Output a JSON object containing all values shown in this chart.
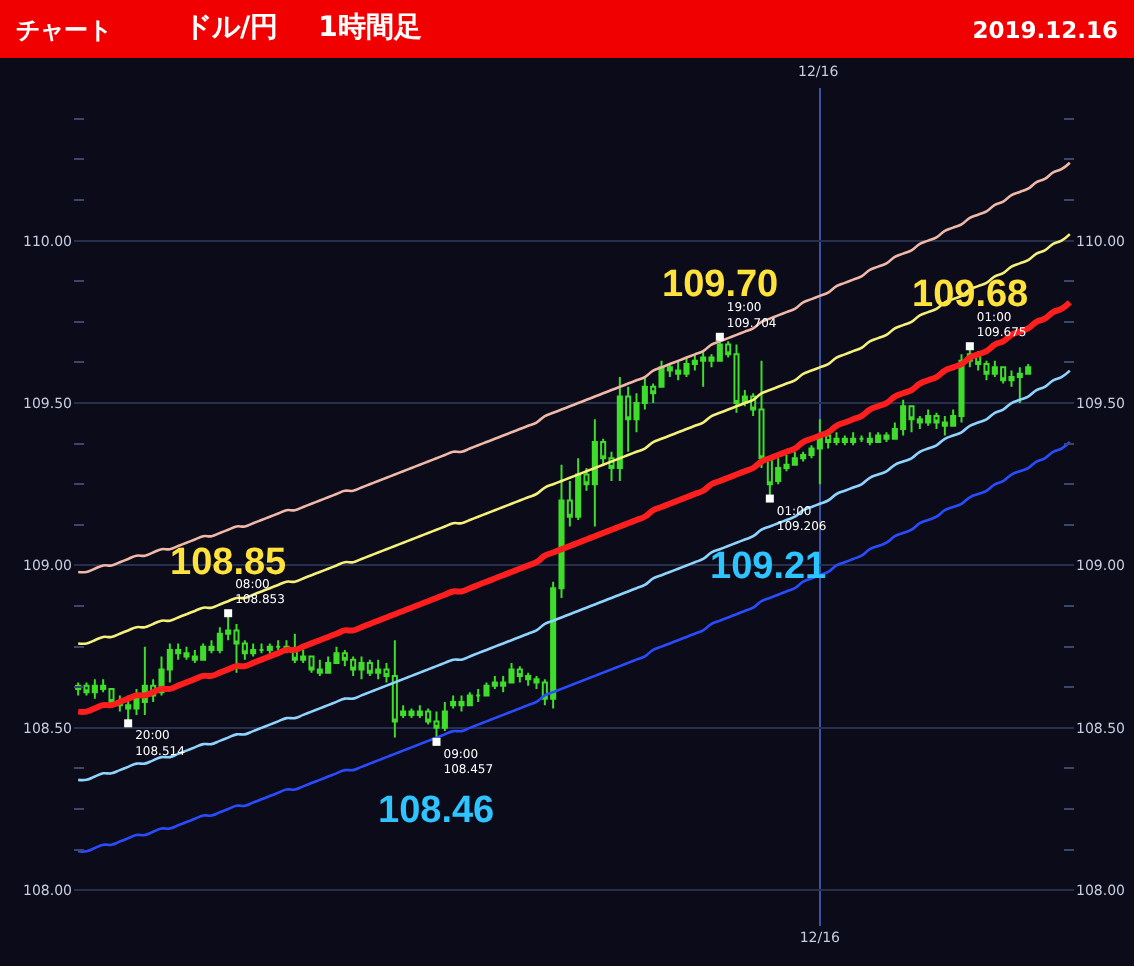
{
  "chart_data": {
    "type": "candlestick",
    "title": "チャート",
    "subtitle": "ドル/円　1時間足",
    "color": "#3fdc2c",
    "grid": true,
    "categories": [
      null,
      null,
      null,
      null,
      null,
      null,
      null,
      null,
      null,
      null,
      null,
      null,
      null,
      null,
      null,
      null,
      null,
      null,
      null,
      null,
      null,
      null,
      null,
      null,
      null,
      null,
      null,
      null,
      null,
      null,
      null,
      null,
      null,
      null,
      null,
      null,
      null,
      null,
      null,
      null,
      null,
      null,
      null,
      null,
      null,
      null,
      null,
      null,
      null,
      null,
      null,
      null,
      null,
      null,
      null,
      null,
      null,
      null,
      null,
      null,
      null,
      null,
      null,
      null,
      null,
      null,
      null,
      null,
      null,
      null,
      null,
      null,
      null,
      null,
      null,
      null,
      null,
      null,
      null,
      null,
      null,
      null,
      null,
      null,
      null,
      null,
      null,
      null,
      null,
      "12/16",
      null,
      null,
      null,
      null,
      null,
      null,
      null,
      null,
      null,
      null,
      null,
      null,
      null,
      null,
      null,
      null,
      null,
      null,
      null,
      null,
      null,
      null,
      null,
      null,
      null,
      null,
      null,
      null,
      null,
      null
    ],
    "ohlc": [
      [
        108.62,
        108.64,
        108.6,
        108.63
      ],
      [
        108.63,
        108.64,
        108.6,
        108.61
      ],
      [
        108.61,
        108.65,
        108.59,
        108.63
      ],
      [
        108.63,
        108.65,
        108.61,
        108.62
      ],
      [
        108.62,
        108.62,
        108.57,
        108.58
      ],
      [
        108.58,
        108.6,
        108.55,
        108.57
      ],
      [
        108.57,
        108.6,
        108.514,
        108.56
      ],
      [
        108.56,
        108.62,
        108.54,
        108.59
      ],
      [
        108.58,
        108.75,
        108.54,
        108.63
      ],
      [
        108.63,
        108.65,
        108.58,
        108.6
      ],
      [
        108.61,
        108.72,
        108.6,
        108.68
      ],
      [
        108.68,
        108.76,
        108.64,
        108.74
      ],
      [
        108.74,
        108.76,
        108.71,
        108.73
      ],
      [
        108.73,
        108.75,
        108.71,
        108.72
      ],
      [
        108.72,
        108.74,
        108.7,
        108.71
      ],
      [
        108.71,
        108.76,
        108.71,
        108.75
      ],
      [
        108.75,
        108.77,
        108.73,
        108.74
      ],
      [
        108.74,
        108.81,
        108.73,
        108.79
      ],
      [
        108.79,
        108.853,
        108.77,
        108.8
      ],
      [
        108.8,
        108.82,
        108.67,
        108.76
      ],
      [
        108.76,
        108.77,
        108.71,
        108.73
      ],
      [
        108.73,
        108.76,
        108.72,
        108.74
      ],
      [
        108.74,
        108.76,
        108.73,
        108.74
      ],
      [
        108.74,
        108.76,
        108.73,
        108.75
      ],
      [
        108.75,
        108.77,
        108.74,
        108.75
      ],
      [
        108.75,
        108.77,
        108.73,
        108.74
      ],
      [
        108.74,
        108.79,
        108.7,
        108.71
      ],
      [
        108.71,
        108.74,
        108.7,
        108.72
      ],
      [
        108.72,
        108.72,
        108.67,
        108.68
      ],
      [
        108.68,
        108.71,
        108.66,
        108.67
      ],
      [
        108.67,
        108.72,
        108.67,
        108.7
      ],
      [
        108.7,
        108.75,
        108.7,
        108.73
      ],
      [
        108.73,
        108.74,
        108.69,
        108.71
      ],
      [
        108.71,
        108.72,
        108.66,
        108.68
      ],
      [
        108.68,
        108.72,
        108.65,
        108.7
      ],
      [
        108.7,
        108.71,
        108.66,
        108.67
      ],
      [
        108.67,
        108.71,
        108.65,
        108.68
      ],
      [
        108.68,
        108.7,
        108.64,
        108.66
      ],
      [
        108.66,
        108.77,
        108.47,
        108.52
      ],
      [
        108.54,
        108.57,
        108.53,
        108.55
      ],
      [
        108.55,
        108.56,
        108.53,
        108.54
      ],
      [
        108.54,
        108.57,
        108.53,
        108.55
      ],
      [
        108.55,
        108.56,
        108.51,
        108.52
      ],
      [
        108.52,
        108.55,
        108.457,
        108.5
      ],
      [
        108.5,
        108.58,
        108.49,
        108.55
      ],
      [
        108.57,
        108.6,
        108.56,
        108.58
      ],
      [
        108.58,
        108.6,
        108.55,
        108.57
      ],
      [
        108.57,
        108.61,
        108.57,
        108.6
      ],
      [
        108.6,
        108.62,
        108.58,
        108.6
      ],
      [
        108.6,
        108.64,
        108.6,
        108.63
      ],
      [
        108.63,
        108.66,
        108.62,
        108.64
      ],
      [
        108.64,
        108.66,
        108.61,
        108.63
      ],
      [
        108.64,
        108.7,
        108.64,
        108.68
      ],
      [
        108.68,
        108.69,
        108.64,
        108.66
      ],
      [
        108.66,
        108.67,
        108.63,
        108.65
      ],
      [
        108.65,
        108.66,
        108.62,
        108.64
      ],
      [
        108.64,
        108.65,
        108.57,
        108.59
      ],
      [
        108.59,
        108.95,
        108.56,
        108.93
      ],
      [
        108.93,
        109.31,
        108.9,
        109.2
      ],
      [
        109.2,
        109.26,
        109.12,
        109.15
      ],
      [
        109.15,
        109.33,
        109.14,
        109.28
      ],
      [
        109.28,
        109.3,
        109.23,
        109.25
      ],
      [
        109.25,
        109.45,
        109.12,
        109.38
      ],
      [
        109.38,
        109.39,
        109.31,
        109.33
      ],
      [
        109.33,
        109.35,
        109.26,
        109.3
      ],
      [
        109.3,
        109.58,
        109.26,
        109.52
      ],
      [
        109.52,
        109.55,
        109.35,
        109.45
      ],
      [
        109.45,
        109.53,
        109.41,
        109.5
      ],
      [
        109.5,
        109.58,
        109.48,
        109.55
      ],
      [
        109.55,
        109.56,
        109.5,
        109.53
      ],
      [
        109.55,
        109.63,
        109.55,
        109.61
      ],
      [
        109.61,
        109.62,
        109.58,
        109.6
      ],
      [
        109.6,
        109.63,
        109.57,
        109.59
      ],
      [
        109.59,
        109.64,
        109.58,
        109.62
      ],
      [
        109.62,
        109.65,
        109.6,
        109.63
      ],
      [
        109.63,
        109.66,
        109.55,
        109.64
      ],
      [
        109.64,
        109.65,
        109.61,
        109.63
      ],
      [
        109.63,
        109.704,
        109.63,
        109.68
      ],
      [
        109.68,
        109.69,
        109.64,
        109.65
      ],
      [
        109.65,
        109.68,
        109.47,
        109.5
      ],
      [
        109.5,
        109.54,
        109.49,
        109.52
      ],
      [
        109.52,
        109.53,
        109.46,
        109.48
      ],
      [
        109.48,
        109.63,
        109.3,
        109.33
      ],
      [
        109.33,
        109.33,
        109.206,
        109.25
      ],
      [
        109.26,
        109.33,
        109.25,
        109.3
      ],
      [
        109.3,
        109.34,
        109.29,
        109.31
      ],
      [
        109.31,
        109.35,
        109.31,
        109.33
      ],
      [
        109.33,
        109.35,
        109.32,
        109.34
      ],
      [
        109.34,
        109.37,
        109.33,
        109.36
      ],
      [
        109.36,
        109.45,
        109.25,
        109.4
      ],
      [
        109.4,
        109.42,
        109.36,
        109.38
      ],
      [
        109.38,
        109.41,
        109.37,
        109.39
      ],
      [
        109.39,
        109.4,
        109.37,
        109.38
      ],
      [
        109.38,
        109.41,
        109.37,
        109.39
      ],
      [
        109.39,
        109.4,
        109.38,
        109.39
      ],
      [
        109.39,
        109.41,
        109.37,
        109.38
      ],
      [
        109.38,
        109.41,
        109.38,
        109.4
      ],
      [
        109.4,
        109.41,
        109.38,
        109.39
      ],
      [
        109.39,
        109.44,
        109.39,
        109.42
      ],
      [
        109.42,
        109.51,
        109.4,
        109.49
      ],
      [
        109.49,
        109.49,
        109.41,
        109.45
      ],
      [
        109.45,
        109.46,
        109.42,
        109.44
      ],
      [
        109.44,
        109.48,
        109.43,
        109.46
      ],
      [
        109.46,
        109.47,
        109.42,
        109.44
      ],
      [
        109.44,
        109.46,
        109.4,
        109.43
      ],
      [
        109.43,
        109.48,
        109.43,
        109.46
      ],
      [
        109.46,
        109.65,
        109.44,
        109.63
      ],
      [
        109.63,
        109.675,
        109.61,
        109.65
      ],
      [
        109.65,
        109.66,
        109.6,
        109.62
      ],
      [
        109.62,
        109.63,
        109.57,
        109.59
      ],
      [
        109.59,
        109.63,
        109.58,
        109.61
      ],
      [
        109.61,
        109.61,
        109.56,
        109.57
      ],
      [
        109.57,
        109.6,
        109.55,
        109.58
      ],
      [
        109.58,
        109.61,
        109.5,
        109.59
      ],
      [
        109.59,
        109.62,
        109.59,
        109.61
      ],
      null,
      null,
      null,
      null,
      null
    ],
    "series": [
      {
        "type": "line",
        "color": "#f0b8a8",
        "values": [
          108.98,
          108.98,
          108.99,
          109.0,
          109.0,
          109.01,
          109.02,
          109.03,
          109.03,
          109.04,
          109.05,
          109.05,
          109.06,
          109.07,
          109.08,
          109.09,
          109.09,
          109.1,
          109.11,
          109.12,
          109.12,
          109.13,
          109.14,
          109.15,
          109.16,
          109.17,
          109.17,
          109.18,
          109.19,
          109.2,
          109.21,
          109.22,
          109.23,
          109.23,
          109.24,
          109.25,
          109.26,
          109.27,
          109.28,
          109.29,
          109.3,
          109.31,
          109.32,
          109.33,
          109.34,
          109.35,
          109.35,
          109.36,
          109.37,
          109.38,
          109.39,
          109.4,
          109.41,
          109.42,
          109.43,
          109.44,
          109.46,
          109.47,
          109.48,
          109.49,
          109.5,
          109.51,
          109.52,
          109.53,
          109.54,
          109.55,
          109.56,
          109.57,
          109.58,
          109.6,
          109.61,
          109.62,
          109.63,
          109.64,
          109.65,
          109.66,
          109.68,
          109.69,
          109.7,
          109.71,
          109.72,
          109.73,
          109.75,
          109.76,
          109.77,
          109.78,
          109.79,
          109.81,
          109.82,
          109.83,
          109.84,
          109.86,
          109.87,
          109.88,
          109.89,
          109.91,
          109.92,
          109.93,
          109.95,
          109.96,
          109.97,
          109.99,
          110.0,
          110.01,
          110.03,
          110.04,
          110.05,
          110.07,
          110.08,
          110.09,
          110.11,
          110.12,
          110.14,
          110.15,
          110.16,
          110.18,
          110.19,
          110.21,
          110.22,
          110.24
        ]
      },
      {
        "type": "line",
        "color": "#f5f07a",
        "values": [
          108.76,
          108.76,
          108.77,
          108.78,
          108.78,
          108.79,
          108.8,
          108.81,
          108.81,
          108.82,
          108.83,
          108.83,
          108.84,
          108.85,
          108.86,
          108.87,
          108.87,
          108.88,
          108.89,
          108.9,
          108.9,
          108.91,
          108.92,
          108.93,
          108.94,
          108.95,
          108.95,
          108.96,
          108.97,
          108.98,
          108.99,
          109.0,
          109.01,
          109.01,
          109.02,
          109.03,
          109.04,
          109.05,
          109.06,
          109.07,
          109.08,
          109.09,
          109.1,
          109.11,
          109.12,
          109.13,
          109.13,
          109.14,
          109.15,
          109.16,
          109.17,
          109.18,
          109.19,
          109.2,
          109.21,
          109.22,
          109.24,
          109.25,
          109.26,
          109.27,
          109.28,
          109.29,
          109.3,
          109.31,
          109.32,
          109.33,
          109.34,
          109.35,
          109.36,
          109.38,
          109.39,
          109.4,
          109.41,
          109.42,
          109.43,
          109.44,
          109.46,
          109.47,
          109.48,
          109.49,
          109.5,
          109.51,
          109.53,
          109.54,
          109.55,
          109.56,
          109.57,
          109.59,
          109.6,
          109.61,
          109.62,
          109.64,
          109.65,
          109.66,
          109.67,
          109.69,
          109.7,
          109.71,
          109.73,
          109.74,
          109.75,
          109.77,
          109.78,
          109.79,
          109.81,
          109.82,
          109.83,
          109.85,
          109.86,
          109.87,
          109.89,
          109.9,
          109.92,
          109.93,
          109.94,
          109.96,
          109.97,
          109.99,
          110.0,
          110.02
        ]
      },
      {
        "type": "line",
        "color": "#ff1e1e",
        "values": [
          108.55,
          108.55,
          108.56,
          108.57,
          108.57,
          108.58,
          108.59,
          108.6,
          108.6,
          108.61,
          108.62,
          108.62,
          108.63,
          108.64,
          108.65,
          108.66,
          108.66,
          108.67,
          108.68,
          108.69,
          108.69,
          108.7,
          108.71,
          108.72,
          108.73,
          108.74,
          108.74,
          108.75,
          108.76,
          108.77,
          108.78,
          108.79,
          108.8,
          108.8,
          108.81,
          108.82,
          108.83,
          108.84,
          108.85,
          108.86,
          108.87,
          108.88,
          108.89,
          108.9,
          108.91,
          108.92,
          108.92,
          108.93,
          108.94,
          108.95,
          108.96,
          108.97,
          108.98,
          108.99,
          109.0,
          109.01,
          109.03,
          109.04,
          109.05,
          109.06,
          109.07,
          109.08,
          109.09,
          109.1,
          109.11,
          109.12,
          109.13,
          109.14,
          109.15,
          109.17,
          109.18,
          109.19,
          109.2,
          109.21,
          109.22,
          109.23,
          109.25,
          109.26,
          109.27,
          109.28,
          109.29,
          109.3,
          109.32,
          109.33,
          109.34,
          109.35,
          109.36,
          109.38,
          109.39,
          109.4,
          109.41,
          109.43,
          109.44,
          109.45,
          109.46,
          109.48,
          109.49,
          109.5,
          109.52,
          109.53,
          109.54,
          109.56,
          109.57,
          109.58,
          109.6,
          109.61,
          109.62,
          109.64,
          109.65,
          109.66,
          109.68,
          109.69,
          109.71,
          109.72,
          109.73,
          109.75,
          109.76,
          109.78,
          109.79,
          109.81
        ]
      },
      {
        "type": "line",
        "color": "#8fd4ff",
        "values": [
          108.34,
          108.34,
          108.35,
          108.36,
          108.36,
          108.37,
          108.38,
          108.39,
          108.39,
          108.4,
          108.41,
          108.41,
          108.42,
          108.43,
          108.44,
          108.45,
          108.45,
          108.46,
          108.47,
          108.48,
          108.48,
          108.49,
          108.5,
          108.51,
          108.52,
          108.53,
          108.53,
          108.54,
          108.55,
          108.56,
          108.57,
          108.58,
          108.59,
          108.59,
          108.6,
          108.61,
          108.62,
          108.63,
          108.64,
          108.65,
          108.66,
          108.67,
          108.68,
          108.69,
          108.7,
          108.71,
          108.71,
          108.72,
          108.73,
          108.74,
          108.75,
          108.76,
          108.77,
          108.78,
          108.79,
          108.8,
          108.82,
          108.83,
          108.84,
          108.85,
          108.86,
          108.87,
          108.88,
          108.89,
          108.9,
          108.91,
          108.92,
          108.93,
          108.94,
          108.96,
          108.97,
          108.98,
          108.99,
          109.0,
          109.01,
          109.02,
          109.04,
          109.05,
          109.06,
          109.07,
          109.08,
          109.09,
          109.11,
          109.12,
          109.13,
          109.14,
          109.15,
          109.17,
          109.18,
          109.19,
          109.2,
          109.22,
          109.23,
          109.24,
          109.25,
          109.27,
          109.28,
          109.29,
          109.31,
          109.32,
          109.33,
          109.35,
          109.36,
          109.37,
          109.39,
          109.4,
          109.41,
          109.43,
          109.44,
          109.45,
          109.47,
          109.48,
          109.5,
          109.51,
          109.52,
          109.54,
          109.55,
          109.57,
          109.58,
          109.6
        ]
      },
      {
        "type": "line",
        "color": "#2a4cff",
        "values": [
          108.12,
          108.12,
          108.13,
          108.14,
          108.14,
          108.15,
          108.16,
          108.17,
          108.17,
          108.18,
          108.19,
          108.19,
          108.2,
          108.21,
          108.22,
          108.23,
          108.23,
          108.24,
          108.25,
          108.26,
          108.26,
          108.27,
          108.28,
          108.29,
          108.3,
          108.31,
          108.31,
          108.32,
          108.33,
          108.34,
          108.35,
          108.36,
          108.37,
          108.37,
          108.38,
          108.39,
          108.4,
          108.41,
          108.42,
          108.43,
          108.44,
          108.45,
          108.46,
          108.47,
          108.48,
          108.49,
          108.49,
          108.5,
          108.51,
          108.52,
          108.53,
          108.54,
          108.55,
          108.56,
          108.57,
          108.58,
          108.6,
          108.61,
          108.62,
          108.63,
          108.64,
          108.65,
          108.66,
          108.67,
          108.68,
          108.69,
          108.7,
          108.71,
          108.72,
          108.74,
          108.75,
          108.76,
          108.77,
          108.78,
          108.79,
          108.8,
          108.82,
          108.83,
          108.84,
          108.85,
          108.86,
          108.87,
          108.89,
          108.9,
          108.91,
          108.92,
          108.93,
          108.95,
          108.96,
          108.97,
          108.98,
          109.0,
          109.01,
          109.02,
          109.03,
          109.05,
          109.06,
          109.07,
          109.09,
          109.1,
          109.11,
          109.13,
          109.14,
          109.15,
          109.17,
          109.18,
          109.19,
          109.21,
          109.22,
          109.23,
          109.25,
          109.26,
          109.28,
          109.29,
          109.3,
          109.32,
          109.33,
          109.35,
          109.36,
          109.38
        ]
      },
      {
        "type": "scatter",
        "color": "#ffffff",
        "marker": "square",
        "values": [
          null,
          null,
          null,
          null,
          null,
          null,
          108.514,
          null,
          null,
          null,
          null,
          null,
          null,
          null,
          null,
          null,
          null,
          null,
          108.853,
          null,
          null,
          null,
          null,
          null,
          null,
          null,
          null,
          null,
          null,
          null,
          null,
          null,
          null,
          null,
          null,
          null,
          null,
          null,
          null,
          null,
          null,
          null,
          null,
          108.457,
          null,
          null,
          null,
          null,
          null,
          null,
          null,
          null,
          null,
          null,
          null,
          null,
          null,
          null,
          null,
          null,
          null,
          null,
          null,
          null,
          null,
          null,
          null,
          null,
          null,
          null,
          null,
          null,
          null,
          null,
          null,
          null,
          null,
          109.704,
          null,
          null,
          null,
          null,
          null,
          109.206,
          null,
          null,
          null,
          null,
          null,
          null,
          null,
          null,
          null,
          null,
          null,
          null,
          null,
          null,
          null,
          null,
          null,
          null,
          null,
          null,
          null,
          null,
          null,
          109.675,
          null,
          null,
          null,
          null,
          null,
          null,
          null,
          null,
          null,
          null,
          null,
          null
        ],
        "value_labels": [
          null,
          null,
          null,
          null,
          null,
          null,
          "20:00\n108.514",
          null,
          null,
          null,
          null,
          null,
          null,
          null,
          null,
          null,
          null,
          null,
          "08:00\n108.853",
          null,
          null,
          null,
          null,
          null,
          null,
          null,
          null,
          null,
          null,
          null,
          null,
          null,
          null,
          null,
          null,
          null,
          null,
          null,
          null,
          null,
          null,
          null,
          null,
          "09:00\n108.457",
          null,
          null,
          null,
          null,
          null,
          null,
          null,
          null,
          null,
          null,
          null,
          null,
          null,
          null,
          null,
          null,
          null,
          null,
          null,
          null,
          null,
          null,
          null,
          null,
          null,
          null,
          null,
          null,
          null,
          null,
          null,
          null,
          null,
          "19:00\n109.704",
          null,
          null,
          null,
          null,
          null,
          "01:00\n109.206",
          null,
          null,
          null,
          null,
          null,
          null,
          null,
          null,
          null,
          null,
          null,
          null,
          null,
          null,
          null,
          null,
          null,
          null,
          null,
          null,
          null,
          null,
          null,
          "01:00\n109.675",
          null,
          null,
          null,
          null,
          null,
          null,
          null,
          null,
          null,
          null,
          null,
          null
        ]
      }
    ],
    "ylim": [
      107.89,
      110.47
    ],
    "yticks": [
      {
        "value": 108,
        "label": "108.00"
      },
      {
        "value": 108.125,
        "label": null
      },
      {
        "value": 108.25,
        "label": null
      },
      {
        "value": 108.375,
        "label": null
      },
      {
        "value": 108.5,
        "label": "108.50"
      },
      {
        "value": 108.625,
        "label": null
      },
      {
        "value": 108.75,
        "label": null
      },
      {
        "value": 108.875,
        "label": null
      },
      {
        "value": 109,
        "label": "109.00"
      },
      {
        "value": 109.125,
        "label": null
      },
      {
        "value": 109.25,
        "label": null
      },
      {
        "value": 109.375,
        "label": null
      },
      {
        "value": 109.5,
        "label": "109.50"
      },
      {
        "value": 109.625,
        "label": null
      },
      {
        "value": 109.75,
        "label": null
      },
      {
        "value": 109.875,
        "label": null
      },
      {
        "value": 110,
        "label": "110.00"
      },
      {
        "value": 110.125,
        "label": null
      },
      {
        "value": 110.25,
        "label": null
      },
      {
        "value": 110.375,
        "label": null
      }
    ],
    "y2lim": [
      107.89,
      110.47
    ],
    "y2ticks": [
      {
        "value": 108,
        "label": "108.00"
      },
      {
        "value": 108.125,
        "label": null
      },
      {
        "value": 108.25,
        "label": null
      },
      {
        "value": 108.375,
        "label": null
      },
      {
        "value": 108.5,
        "label": "108.50"
      },
      {
        "value": 108.625,
        "label": null
      },
      {
        "value": 108.75,
        "label": null
      },
      {
        "value": 108.875,
        "label": null
      },
      {
        "value": 109,
        "label": "109.00"
      },
      {
        "value": 109.125,
        "label": null
      },
      {
        "value": 109.25,
        "label": null
      },
      {
        "value": 109.375,
        "label": null
      },
      {
        "value": 109.5,
        "label": "109.50"
      },
      {
        "value": 109.625,
        "label": null
      },
      {
        "value": 109.75,
        "label": null
      },
      {
        "value": 109.875,
        "label": null
      },
      {
        "value": 110,
        "label": "110.00"
      },
      {
        "value": 110.125,
        "label": null
      },
      {
        "value": 110.25,
        "label": null
      },
      {
        "value": 110.375,
        "label": null
      }
    ],
    "annotations": [
      "2019.12.16",
      {
        "text": "12/16",
        "x": "12/16"
      },
      {
        "text": "108.85",
        "y": 108.853
      },
      {
        "text": "108.46",
        "y": 108.457
      },
      {
        "text": "109.70",
        "y": 109.704
      },
      {
        "text": "109.21",
        "y": 109.206
      },
      {
        "text": "109.68",
        "y": 109.675
      }
    ]
  }
}
